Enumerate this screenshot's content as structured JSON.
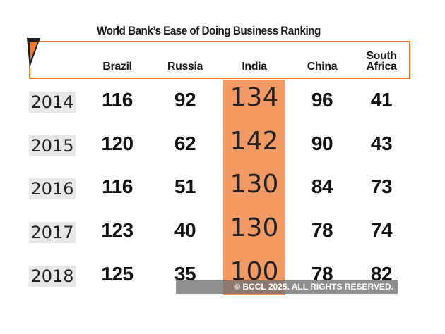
{
  "chart_data": {
    "type": "table",
    "title": "World Bank’s Ease of Doing Business Ranking",
    "columns": [
      {
        "key": "brazil",
        "label": "Brazil"
      },
      {
        "key": "russia",
        "label": "Russia"
      },
      {
        "key": "india",
        "label": "India"
      },
      {
        "key": "china",
        "label": "China"
      },
      {
        "key": "south_africa",
        "label": "South\nAfrica"
      }
    ],
    "rows": [
      {
        "year": "2014",
        "values": [
          116,
          92,
          134,
          96,
          41
        ]
      },
      {
        "year": "2015",
        "values": [
          120,
          62,
          142,
          90,
          43
        ]
      },
      {
        "year": "2016",
        "values": [
          116,
          51,
          130,
          84,
          73
        ]
      },
      {
        "year": "2017",
        "values": [
          123,
          40,
          130,
          78,
          74
        ]
      },
      {
        "year": "2018",
        "values": [
          125,
          35,
          100,
          78,
          82
        ]
      }
    ],
    "highlight_column": "india"
  },
  "watermark": "© BCCL 2025. ALL RIGHTS RESERVED.",
  "colors": {
    "accent": "#f07b2d",
    "highlight": "#f39a64",
    "year_bg": "#e7e7e7"
  }
}
